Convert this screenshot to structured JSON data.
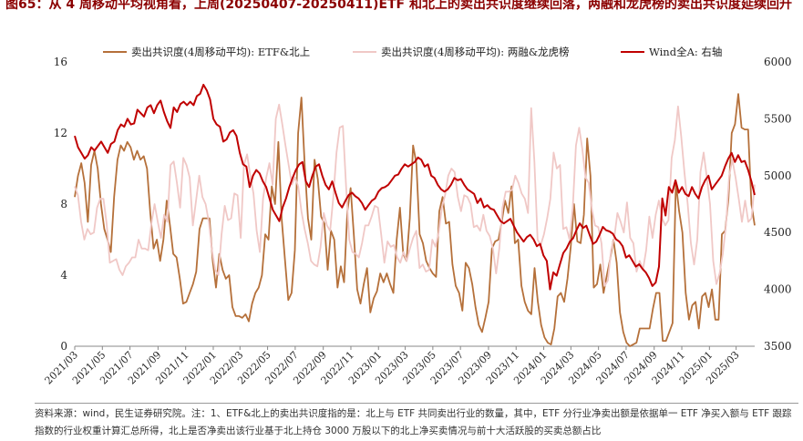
{
  "title": "图65：从 4 周移动平均视角看，上周(20250407-20250411)ETF 和北上的卖出共识度继续回落，两融和龙虎榜的卖出共识度延续回升",
  "note": "资料来源：wind，民生证券研究院。注：1、ETF&北上的卖出共识度指的是：北上与 ETF 共同卖出行业的数量，其中，ETF 分行业净卖出额是依据单一 ETF 净买入额与 ETF 跟踪指数的行业权重计算汇总所得，北上是否净卖出该行业基于北上持仓 3000 万股以下的北上净买卖情况与前十大活跃股的买卖总额占比",
  "chart_data": {
    "type": "line",
    "x_ticks": [
      "2021/03",
      "2021/05",
      "2021/07",
      "2021/09",
      "2021/11",
      "2022/01",
      "2022/03",
      "2022/05",
      "2022/07",
      "2022/09",
      "2022/11",
      "2023/01",
      "2023/03",
      "2023/05",
      "2023/07",
      "2023/09",
      "2023/11",
      "2024/01",
      "2024/03",
      "2024/05",
      "2024/07",
      "2024/09",
      "2024/11",
      "2025/01",
      "2025/03"
    ],
    "y_left": {
      "min": 0,
      "max": 16,
      "ticks": [
        0,
        4,
        8,
        12,
        16
      ]
    },
    "y_right": {
      "min": 3500,
      "max": 6000,
      "ticks": [
        3500,
        4000,
        4500,
        5000,
        5500,
        6000
      ]
    },
    "x_start": "2021-03-01",
    "x_end": "2025-04-11",
    "series": [
      {
        "name": "卖出共识度(4周移动平均): ETF&北上",
        "axis": "left",
        "color": "#b5703a",
        "width": 1.8,
        "values": [
          8.4,
          9.6,
          10.3,
          9.2,
          7.0,
          10.2,
          11.0,
          10.0,
          8.0,
          6.6,
          6.0,
          5.3,
          8.4,
          10.5,
          11.3,
          11.0,
          11.5,
          11.2,
          10.5,
          11.0,
          10.5,
          10.7,
          10.0,
          7.5,
          5.5,
          6.0,
          4.8,
          6.0,
          8.2,
          6.8,
          5.2,
          5.0,
          3.8,
          2.4,
          2.5,
          3.0,
          3.5,
          4.2,
          6.6,
          7.2,
          7.2,
          7.2,
          4.8,
          3.3,
          5.2,
          4.3,
          3.8,
          4.0,
          2.2,
          1.7,
          1.7,
          1.6,
          1.8,
          1.4,
          2.4,
          3.0,
          3.3,
          4.0,
          6.3,
          6.0,
          9.0,
          8.0,
          11.5,
          7.2,
          4.9,
          2.6,
          3.0,
          5.4,
          12.0,
          14.0,
          10.2,
          7.2,
          6.0,
          10.5,
          9.4,
          7.3,
          6.9,
          4.3,
          6.5,
          6.0,
          3.3,
          4.5,
          3.6,
          7.6,
          8.9,
          6.2,
          3.2,
          2.4,
          3.5,
          4.4,
          1.9,
          2.7,
          3.1,
          4.1,
          3.6,
          4.1,
          3.5,
          3.0,
          6.0,
          7.8,
          5.2,
          4.8,
          7.2,
          11.3,
          10.3,
          6.3,
          5.8,
          4.8,
          4.4,
          4.1,
          3.9,
          7.6,
          8.4,
          6.9,
          7.0,
          4.6,
          3.4,
          3.0,
          2.0,
          4.7,
          4.4,
          3.5,
          2.2,
          1.2,
          0.8,
          1.6,
          2.5,
          5.5,
          5.9,
          6.0,
          7.0,
          8.2,
          7.5,
          9.0,
          5.8,
          6.0,
          3.4,
          2.5,
          2.0,
          1.8,
          4.4,
          2.5,
          1.2,
          0.5,
          0.2,
          0.1,
          1.0,
          2.8,
          3.0,
          2.5,
          3.8,
          5.6,
          8.0,
          5.9,
          5.8,
          7.4,
          11.7,
          9.6,
          3.3,
          3.5,
          4.6,
          3.0,
          4.0,
          4.9,
          6.0,
          4.7,
          1.9,
          0.8,
          0.2,
          0.0,
          0.1,
          0.2,
          1.0,
          1.0,
          1.0,
          1.0,
          2.1,
          3.0,
          3.0,
          0.3,
          0.3,
          0.8,
          1.3,
          9.2,
          7.6,
          6.4,
          3.0,
          1.5,
          2.3,
          2.5,
          1.0,
          2.8,
          3.0,
          2.2,
          3.2,
          1.5,
          1.5,
          6.3,
          6.5,
          8.3,
          12.0,
          12.5,
          14.2,
          12.3,
          12.2,
          12.2,
          8.0,
          6.8
        ]
      },
      {
        "name": "卖出共识度(4周移动平均): 两融&龙虎榜",
        "axis": "left",
        "color": "#f0c8c6",
        "width": 1.8,
        "values": [
          9.0,
          8.5,
          7.0,
          6.0,
          6.6,
          6.3,
          6.4,
          7.8,
          8.3,
          8.3,
          6.9,
          4.7,
          4.8,
          4.9,
          4.3,
          4.0,
          4.5,
          4.7,
          5.0,
          5.0,
          6.0,
          5.5,
          5.5,
          5.4,
          6.9,
          8.0,
          7.0,
          6.1,
          7.4,
          7.0,
          10.2,
          10.4,
          9.2,
          7.8,
          10.6,
          10.2,
          9.5,
          6.8,
          8.2,
          9.6,
          8.4,
          8.0,
          7.0,
          5.4,
          4.3,
          4.0,
          6.3,
          7.9,
          7.1,
          7.2,
          8.6,
          8.5,
          6.1,
          10.2,
          10.8,
          9.6,
          8.6,
          6.5,
          5.3,
          8.3,
          9.5,
          10.3,
          9.1,
          12.8,
          13.6,
          12.5,
          11.3,
          10.2,
          9.1,
          9.5,
          9.0,
          7.6,
          6.6,
          5.8,
          4.8,
          4.6,
          4.5,
          5.6,
          7.5,
          6.8,
          6.5,
          8.4,
          10.9,
          12.3,
          12.4,
          9.0,
          6.0,
          5.3,
          5.2,
          5.0,
          5.8,
          6.8,
          6.8,
          7.3,
          7.9,
          7.8,
          6.3,
          4.7,
          5.9,
          5.6,
          5.7,
          5.0,
          4.7,
          5.3,
          4.8,
          5.5,
          6.1,
          6.5,
          4.4,
          4.6,
          4.2,
          4.3,
          6.0,
          5.6,
          6.4,
          7.8,
          8.5,
          9.6,
          10.0,
          9.8,
          8.4,
          7.6,
          8.5,
          8.4,
          8.0,
          6.7,
          6.8,
          6.5,
          7.4,
          6.5,
          6.2,
          5.5,
          4.1,
          5.5,
          7.8,
          8.7,
          8.7,
          8.8,
          9.6,
          9.2,
          8.6,
          8.3,
          7.5,
          13.4,
          10.4,
          6.0,
          5.7,
          6.3,
          7.2,
          8.3,
          10.9,
          10.0,
          10.2,
          6.6,
          6.7,
          6.0,
          7.8,
          11.3,
          12.3,
          11.1,
          9.5,
          9.2,
          7.7,
          6.8,
          6.7,
          5.8,
          3.4,
          3.7,
          5.4,
          6.1,
          7.5,
          7.0,
          6.4,
          8.1,
          6.1,
          5.8,
          4.2,
          4.8,
          4.3,
          5.4,
          7.3,
          6.1,
          7.4,
          8.2,
          7.2,
          6.8,
          7.1,
          10.6,
          11.6,
          13.5,
          11.8,
          9.8,
          8.0,
          5.8,
          4.6,
          6.0,
          9.8,
          10.9,
          9.5,
          8.0,
          4.8,
          3.5,
          4.1,
          5.2,
          6.8,
          9.6,
          10.5,
          9.5,
          8.3,
          7.0,
          8.2,
          7.0,
          7.2,
          9.1
        ]
      },
      {
        "name": "Wind全A: 右轴",
        "axis": "right",
        "color": "#c00000",
        "width": 2.0,
        "values": [
          5350,
          5250,
          5200,
          5150,
          5180,
          5250,
          5220,
          5260,
          5300,
          5250,
          5200,
          5280,
          5300,
          5400,
          5450,
          5430,
          5500,
          5450,
          5460,
          5580,
          5550,
          5520,
          5600,
          5620,
          5550,
          5620,
          5660,
          5560,
          5480,
          5420,
          5600,
          5560,
          5630,
          5650,
          5620,
          5650,
          5620,
          5700,
          5720,
          5800,
          5750,
          5670,
          5500,
          5450,
          5430,
          5300,
          5320,
          5380,
          5400,
          5350,
          5200,
          5100,
          5080,
          4900,
          5000,
          5050,
          5020,
          4950,
          4900,
          4800,
          4700,
          4650,
          4600,
          4720,
          4800,
          4900,
          4980,
          5050,
          5100,
          5120,
          4950,
          4900,
          5000,
          5080,
          5100,
          5000,
          4920,
          4880,
          4950,
          4850,
          4760,
          4720,
          4780,
          4830,
          4850,
          4820,
          4800,
          4760,
          4700,
          4740,
          4780,
          4800,
          4860,
          4890,
          4900,
          4920,
          4960,
          5000,
          5010,
          5060,
          5100,
          5080,
          5100,
          5120,
          5160,
          5140,
          5080,
          5100,
          5000,
          4980,
          4920,
          4880,
          4860,
          4880,
          4920,
          4980,
          4960,
          4970,
          4920,
          4880,
          4860,
          4840,
          4760,
          4800,
          4720,
          4740,
          4710,
          4700,
          4650,
          4600,
          4580,
          4600,
          4620,
          4560,
          4500,
          4460,
          4420,
          4460,
          4480,
          4440,
          4380,
          4400,
          4300,
          4250,
          4000,
          4150,
          4120,
          4220,
          4320,
          4360,
          4420,
          4450,
          4520,
          4580,
          4540,
          4560,
          4480,
          4400,
          4420,
          4480,
          4550,
          4520,
          4510,
          4490,
          4440,
          4420,
          4380,
          4280,
          4300,
          4250,
          4200,
          4220,
          4180,
          4150,
          4100,
          4030,
          4060,
          4200,
          4800,
          4650,
          4900,
          4850,
          4960,
          4850,
          4900,
          4840,
          4820,
          4900,
          4840,
          4800,
          4900,
          4960,
          5000,
          4880,
          4920,
          4960,
          5000,
          5080,
          5150,
          5200,
          5120,
          5180,
          5120,
          5130,
          5050,
          4950,
          4830
        ]
      }
    ]
  }
}
